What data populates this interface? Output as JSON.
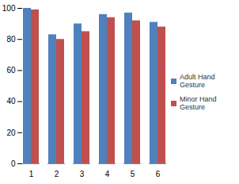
{
  "chart_data": {
    "type": "bar",
    "categories": [
      "1",
      "2",
      "3",
      "4",
      "5",
      "6"
    ],
    "series": [
      {
        "name": "Adult Hand Gesture",
        "color": "#4f81bd",
        "values": [
          100,
          83,
          90,
          96,
          97,
          91
        ]
      },
      {
        "name": "Minor Hand Gesture",
        "color": "#c0504d",
        "values": [
          99,
          80,
          85,
          94,
          92,
          88
        ]
      }
    ],
    "ylim": [
      0,
      100
    ],
    "yticks": [
      0,
      20,
      40,
      60,
      80,
      100
    ],
    "grid": false,
    "legend": "right"
  }
}
